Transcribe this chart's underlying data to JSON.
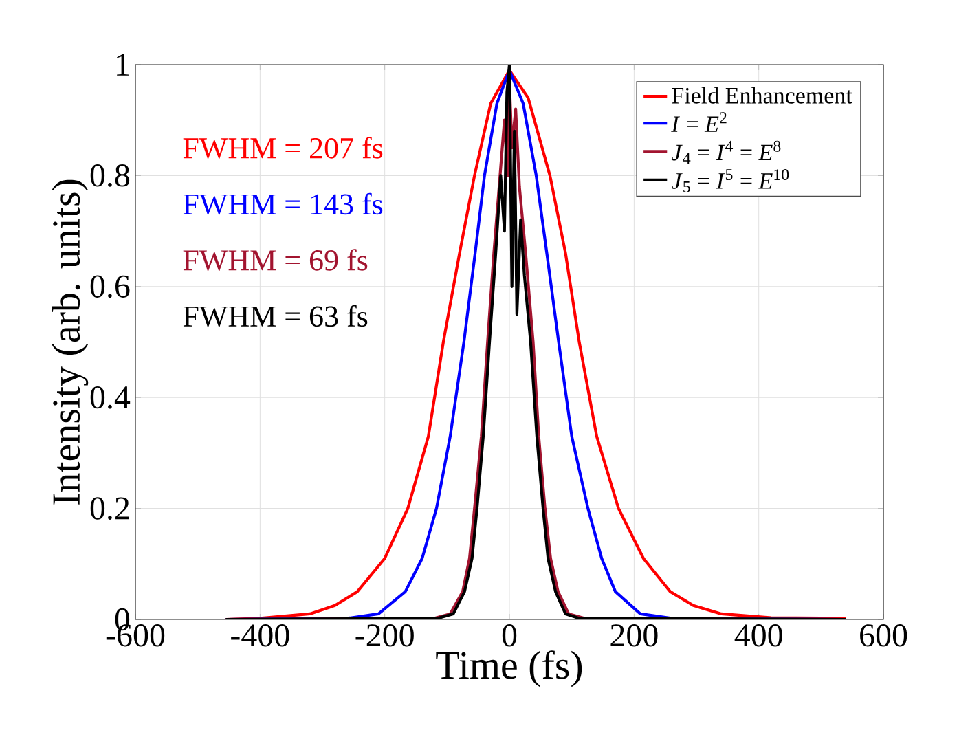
{
  "chart_data": {
    "type": "line",
    "xlabel": "Time (fs)",
    "ylabel": "Intensity (arb. units)",
    "xlim": [
      -600,
      600
    ],
    "xticks": [
      -600,
      -400,
      -200,
      0,
      200,
      400,
      600
    ],
    "ylim": [
      0,
      1
    ],
    "yticks": [
      0,
      0.2,
      0.4,
      0.6,
      0.8,
      1
    ],
    "grid": true,
    "legend": "top right",
    "marker": "none",
    "line_style": "solid",
    "series": [
      {
        "name": "Field Enhancement",
        "color": "#ff0000",
        "x": [
          -455,
          -400,
          -320,
          -280,
          -244,
          -200,
          -163,
          -130,
          -106,
          -80,
          -56,
          -30,
          0,
          30,
          65,
          90,
          112,
          140,
          175,
          215,
          258,
          295,
          340,
          420,
          540
        ],
        "values": [
          0,
          0.002,
          0.01,
          0.025,
          0.05,
          0.11,
          0.2,
          0.33,
          0.5,
          0.66,
          0.8,
          0.93,
          0.99,
          0.94,
          0.8,
          0.66,
          0.5,
          0.33,
          0.2,
          0.11,
          0.05,
          0.025,
          0.01,
          0.003,
          0.002
        ]
      },
      {
        "name": "*I* = *E*$^{2}$",
        "color": "#0000ff",
        "x": [
          -455,
          -260,
          -210,
          -167,
          -140,
          -117,
          -95,
          -73,
          -55,
          -40,
          -20,
          0,
          22,
          43,
          60,
          79,
          100,
          126,
          148,
          170,
          210,
          260,
          540
        ],
        "values": [
          0,
          0.002,
          0.01,
          0.05,
          0.11,
          0.2,
          0.33,
          0.5,
          0.66,
          0.8,
          0.93,
          0.99,
          0.93,
          0.8,
          0.66,
          0.5,
          0.33,
          0.2,
          0.11,
          0.05,
          0.01,
          0.002,
          0
        ]
      },
      {
        "name": "*J*$_{4}$ = *I*$^{4}$ = *E*$^{8}$",
        "color": "#a2142f",
        "x": [
          -455,
          -120,
          -95,
          -75,
          -64,
          -56,
          -45,
          -35,
          -25,
          -15,
          -8,
          -3,
          0,
          4,
          10,
          16,
          26,
          38,
          47,
          57,
          66,
          78,
          95,
          120,
          540
        ],
        "values": [
          0,
          0.002,
          0.01,
          0.05,
          0.11,
          0.2,
          0.33,
          0.5,
          0.66,
          0.8,
          0.9,
          0.8,
          0.97,
          0.85,
          0.92,
          0.78,
          0.66,
          0.5,
          0.33,
          0.2,
          0.11,
          0.05,
          0.01,
          0.002,
          0
        ]
      },
      {
        "name": "*J*$_{5}$ = *I*$^{5}$ = *E*$^{10}$",
        "color": "#000000",
        "x": [
          -455,
          -115,
          -90,
          -72,
          -60,
          -52,
          -42,
          -32,
          -22,
          -14,
          -8,
          -4,
          0,
          4,
          8,
          12,
          18,
          24,
          34,
          44,
          54,
          62,
          74,
          90,
          112,
          540
        ],
        "values": [
          0,
          0.002,
          0.01,
          0.05,
          0.11,
          0.2,
          0.33,
          0.5,
          0.66,
          0.8,
          0.7,
          0.95,
          1.0,
          0.6,
          0.88,
          0.55,
          0.72,
          0.62,
          0.5,
          0.33,
          0.2,
          0.11,
          0.05,
          0.01,
          0.002,
          0
        ]
      }
    ],
    "annotations": [
      "FWHM = 207 fs",
      "FWHM = 143 fs",
      "FWHM = 69 fs",
      "FWHM = 63 fs"
    ]
  }
}
